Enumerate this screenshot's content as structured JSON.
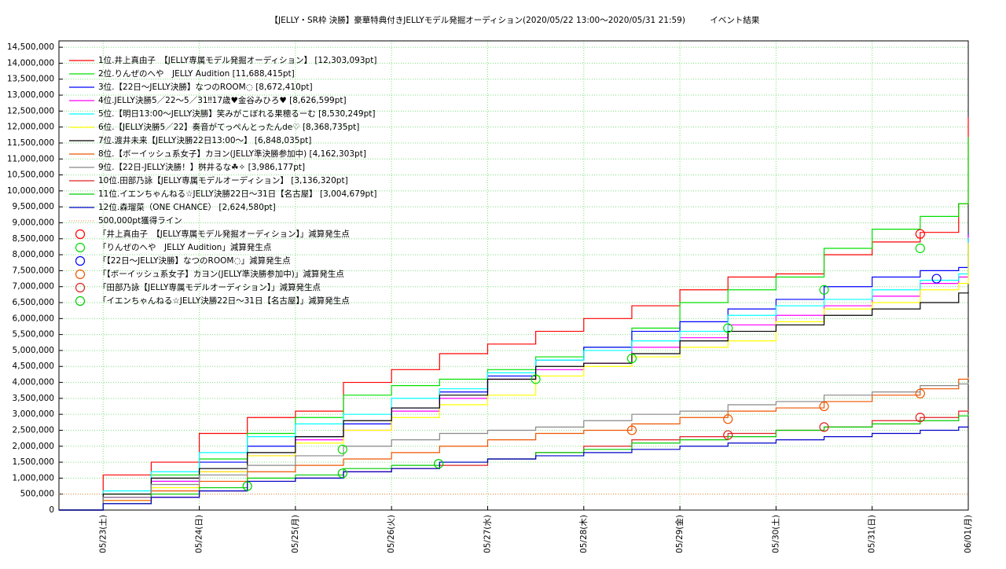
{
  "chart_data": {
    "type": "step",
    "title": "【JELLY・SR枠 決勝】豪華特典付きJELLYモデル発掘オーディション(2020/05/22 13:00～2020/05/31 21:59)　　　イベント結果",
    "x": [
      0.54,
      1,
      1.5,
      2,
      2.5,
      3,
      3.5,
      4,
      4.5,
      5,
      5.5,
      6,
      6.5,
      7,
      7.5,
      8,
      8.5,
      9,
      9.5,
      9.9,
      10
    ],
    "xlim": [
      0.54,
      10
    ],
    "xticks": [
      {
        "value": 1,
        "label": "05/23(土)"
      },
      {
        "value": 2,
        "label": "05/24(日)"
      },
      {
        "value": 3,
        "label": "05/25(月)"
      },
      {
        "value": 4,
        "label": "05/26(火)"
      },
      {
        "value": 5,
        "label": "05/27(水)"
      },
      {
        "value": 6,
        "label": "05/28(木)"
      },
      {
        "value": 7,
        "label": "05/29(金)"
      },
      {
        "value": 8,
        "label": "05/30(土)"
      },
      {
        "value": 9,
        "label": "05/31(日)"
      },
      {
        "value": 10,
        "label": "06/01(月)"
      }
    ],
    "ylim": [
      0,
      14700000
    ],
    "yticks": [
      0,
      {
        "value": 500000,
        "label": "500,000"
      },
      {
        "value": 1000000,
        "label": "1,000,000"
      },
      {
        "value": 1500000,
        "label": "1,500,000"
      },
      {
        "value": 2000000,
        "label": "2,000,000"
      },
      {
        "value": 2500000,
        "label": "2,500,000"
      },
      {
        "value": 3000000,
        "label": "3,000,000"
      },
      {
        "value": 3500000,
        "label": "3,500,000"
      },
      {
        "value": 4000000,
        "label": "4,000,000"
      },
      {
        "value": 4500000,
        "label": "4,500,000"
      },
      {
        "value": 5000000,
        "label": "5,000,000"
      },
      {
        "value": 5500000,
        "label": "5,500,000"
      },
      {
        "value": 6000000,
        "label": "6,000,000"
      },
      {
        "value": 6500000,
        "label": "6,500,000"
      },
      {
        "value": 7000000,
        "label": "7,000,000"
      },
      {
        "value": 7500000,
        "label": "7,500,000"
      },
      {
        "value": 8000000,
        "label": "8,000,000"
      },
      {
        "value": 8500000,
        "label": "8,500,000"
      },
      {
        "value": 9000000,
        "label": "9,000,000"
      },
      {
        "value": 9500000,
        "label": "9,500,000"
      },
      {
        "value": 10000000,
        "label": "10,000,000"
      },
      {
        "value": 10500000,
        "label": "10,500,000"
      },
      {
        "value": 11000000,
        "label": "11,000,000"
      },
      {
        "value": 11500000,
        "label": "11,500,000"
      },
      {
        "value": 12000000,
        "label": "12,000,000"
      },
      {
        "value": 12500000,
        "label": "12,500,000"
      },
      {
        "value": 13000000,
        "label": "13,000,000"
      },
      {
        "value": 13500000,
        "label": "13,500,000"
      },
      {
        "value": 14000000,
        "label": "14,000,000"
      },
      {
        "value": 14500000,
        "label": "14,500,000"
      }
    ],
    "grid": true,
    "grid_color": "#7ee07e",
    "legend": "top-left",
    "series": [
      {
        "name": "1位.井上真由子　【JELLY専属モデル発掘オーディション】 [12,303,093pt]",
        "color": "#ff0000",
        "values": [
          0,
          1100000,
          1500000,
          2400000,
          2900000,
          3100000,
          4000000,
          4400000,
          4900000,
          5200000,
          5600000,
          6000000,
          6400000,
          6900000,
          7300000,
          7400000,
          8000000,
          8400000,
          8700000,
          9600000,
          12303093
        ]
      },
      {
        "name": "2位.りんぜのへや　JELLY Audition [11,688,415pt]",
        "color": "#00e000",
        "values": [
          0,
          500000,
          1100000,
          1600000,
          2400000,
          2900000,
          3600000,
          3900000,
          4100000,
          4400000,
          4800000,
          5100000,
          5700000,
          6500000,
          6900000,
          7300000,
          8200000,
          8800000,
          9200000,
          9600000,
          11688415
        ]
      },
      {
        "name": "3位.【22日～JELLY決勝】なつのROOM◌ [8,672,410pt]",
        "color": "#0000ff",
        "values": [
          0,
          400000,
          900000,
          1500000,
          2000000,
          2300000,
          2700000,
          3200000,
          3700000,
          4200000,
          4700000,
          5100000,
          5600000,
          5900000,
          6300000,
          6600000,
          7000000,
          7300000,
          7500000,
          7600000,
          8672410
        ]
      },
      {
        "name": "4位.JELLY決勝5／22～5／31‼17歳♥金谷みひろ♥ [8,626,599pt]",
        "color": "#ff00ff",
        "values": [
          0,
          400000,
          900000,
          1200000,
          1700000,
          2200000,
          2500000,
          3100000,
          3500000,
          4100000,
          4400000,
          4600000,
          5100000,
          5400000,
          5800000,
          6100000,
          6400000,
          6700000,
          7100000,
          7300000,
          8626599
        ]
      },
      {
        "name": "5位.【明日13:00～JELLY決勝】笑みがこぼれる果穂るーむ [8,530,249pt]",
        "color": "#00ffff",
        "values": [
          0,
          600000,
          1200000,
          1800000,
          2300000,
          2700000,
          3000000,
          3500000,
          3800000,
          4300000,
          4700000,
          5000000,
          5300000,
          5600000,
          6100000,
          6400000,
          6600000,
          6900000,
          7200000,
          7400000,
          8530249
        ]
      },
      {
        "name": "6位.【JELLY決勝5／22】奏音がてっぺんとったんde♡ [8,368,735pt]",
        "color": "#ffff00",
        "values": [
          0,
          300000,
          700000,
          1200000,
          1700000,
          2100000,
          2500000,
          2900000,
          3300000,
          3600000,
          4200000,
          4500000,
          4800000,
          5100000,
          5300000,
          5900000,
          6300000,
          6500000,
          6900000,
          7100000,
          8368735
        ]
      },
      {
        "name": "7位.渡井未来【JELLY決勝22日13:00～】 [6,848,035pt]",
        "color": "#000000",
        "values": [
          0,
          500000,
          1000000,
          1300000,
          1800000,
          2300000,
          2800000,
          3200000,
          3600000,
          4100000,
          4500000,
          4600000,
          4900000,
          5300000,
          5600000,
          5800000,
          6100000,
          6300000,
          6500000,
          6800000,
          6848035
        ]
      },
      {
        "name": "8位.【ボーイッシュ系女子】カヨン(JELLY準決勝参加中) [4,162,303pt]",
        "color": "#ee5500",
        "values": [
          0,
          300000,
          600000,
          900000,
          1200000,
          1400000,
          1600000,
          1800000,
          2000000,
          2200000,
          2400000,
          2500000,
          2700000,
          2900000,
          3100000,
          3200000,
          3400000,
          3600000,
          3800000,
          4100000,
          4162303
        ]
      },
      {
        "name": "9位.【22日-JELLY決勝！】桝井るな☘✧ [3,986,177pt]",
        "color": "#888888",
        "values": [
          0,
          400000,
          800000,
          1100000,
          1400000,
          1700000,
          2000000,
          2200000,
          2400000,
          2500000,
          2600000,
          2800000,
          3000000,
          3100000,
          3300000,
          3400000,
          3600000,
          3700000,
          3900000,
          3950000,
          3986177
        ]
      },
      {
        "name": "10位.田部乃詠【JELLY専属モデルオーディション】 [3,136,320pt]",
        "color": "#e02020",
        "values": [
          0,
          200000,
          400000,
          600000,
          900000,
          1000000,
          1200000,
          1300000,
          1400000,
          1600000,
          1800000,
          2000000,
          2200000,
          2300000,
          2400000,
          2500000,
          2600000,
          2800000,
          2900000,
          3100000,
          3136320
        ]
      },
      {
        "name": "11位.イエンちゃんねる☆JELLY決勝22日～31日【名古屋】 [3,004,679pt]",
        "color": "#00cc00",
        "values": [
          0,
          200000,
          500000,
          700000,
          1000000,
          1100000,
          1300000,
          1400000,
          1500000,
          1600000,
          1800000,
          1900000,
          2100000,
          2200000,
          2300000,
          2500000,
          2600000,
          2700000,
          2800000,
          2950000,
          3004679
        ]
      },
      {
        "name": "12位.森瑠菜（ONE CHANCE） [2,624,580pt]",
        "color": "#0000cc",
        "values": [
          0,
          200000,
          400000,
          600000,
          900000,
          1000000,
          1200000,
          1300000,
          1500000,
          1600000,
          1700000,
          1800000,
          1900000,
          2000000,
          2100000,
          2200000,
          2300000,
          2400000,
          2500000,
          2600000,
          2624580
        ]
      }
    ],
    "reference_line": {
      "name": "500,000pt獲得ライン",
      "value": 500000,
      "color": "#ff8040"
    },
    "markers": [
      {
        "name": "「井上真由子　【JELLY専属モデル発掘オーディション】」減算発生点",
        "color": "#ff0000",
        "x": [
          9.5
        ],
        "y": [
          8650000
        ]
      },
      {
        "name": "「りんぜのへや　JELLY Audition」減算発生点",
        "color": "#00e000",
        "x": [
          3.49,
          5.5,
          6.5,
          7.5,
          8.5,
          9.5
        ],
        "y": [
          1900000,
          4100000,
          4750000,
          5700000,
          6900000,
          8200000
        ]
      },
      {
        "name": "「【22日～JELLY決勝】なつのROOM◌」減算発生点",
        "color": "#0000ff",
        "x": [
          9.67
        ],
        "y": [
          7250000
        ]
      },
      {
        "name": "「【ボーイッシュ系女子】カヨン(JELLY準決勝参加中)」減算発生点",
        "color": "#ee5500",
        "x": [
          6.5,
          7.5,
          8.5,
          9.5
        ],
        "y": [
          2500000,
          2850000,
          3250000,
          3650000
        ]
      },
      {
        "name": "「田部乃詠【JELLY専属モデルオーディション】」減算発生点",
        "color": "#e02020",
        "x": [
          7.5,
          8.5,
          9.5
        ],
        "y": [
          2350000,
          2600000,
          2900000
        ]
      },
      {
        "name": "「イエンちゃんねる☆JELLY決勝22日～31日【名古屋】」減算発生点",
        "color": "#00cc00",
        "x": [
          2.5,
          3.49,
          4.49
        ],
        "y": [
          750000,
          1150000,
          1450000
        ]
      }
    ]
  }
}
